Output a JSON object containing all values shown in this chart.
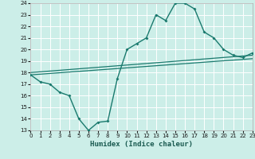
{
  "title": "",
  "xlabel": "Humidex (Indice chaleur)",
  "bg_color": "#cceee8",
  "line_color": "#1a7a6e",
  "grid_color": "#ffffff",
  "xlim": [
    0,
    23
  ],
  "ylim": [
    13,
    24
  ],
  "yticks": [
    13,
    14,
    15,
    16,
    17,
    18,
    19,
    20,
    21,
    22,
    23,
    24
  ],
  "xticks": [
    0,
    1,
    2,
    3,
    4,
    5,
    6,
    7,
    8,
    9,
    10,
    11,
    12,
    13,
    14,
    15,
    16,
    17,
    18,
    19,
    20,
    21,
    22,
    23
  ],
  "curve1_x": [
    0,
    1,
    2,
    3,
    4,
    5,
    6,
    7,
    8,
    9,
    10,
    11,
    12,
    13,
    14,
    15,
    16,
    17,
    18,
    19,
    20,
    21,
    22,
    23
  ],
  "curve1_y": [
    17.8,
    17.2,
    17.0,
    16.3,
    16.0,
    14.0,
    13.0,
    13.7,
    13.8,
    17.5,
    20.0,
    20.5,
    21.0,
    23.0,
    22.5,
    24.0,
    24.0,
    23.5,
    21.5,
    21.0,
    20.0,
    19.5,
    19.3,
    19.7
  ],
  "curve2_x": [
    0,
    23
  ],
  "curve2_y": [
    18.0,
    19.5
  ],
  "curve3_x": [
    0,
    23
  ],
  "curve3_y": [
    17.8,
    19.2
  ]
}
